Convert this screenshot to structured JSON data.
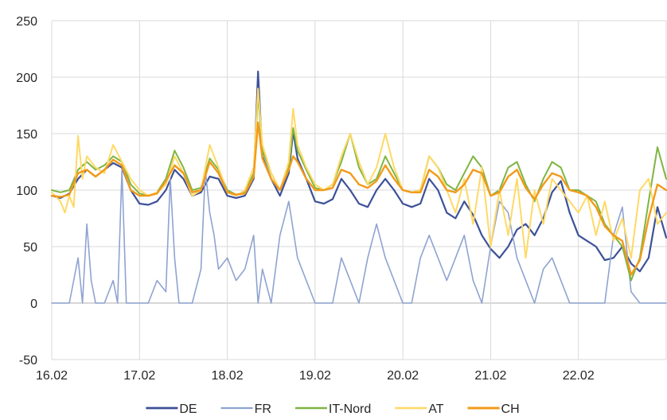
{
  "chart_data": {
    "type": "line",
    "title": "",
    "xlabel": "",
    "ylabel": "",
    "ylim": [
      -50,
      250
    ],
    "yticks": [
      -50,
      0,
      50,
      100,
      150,
      200,
      250
    ],
    "xlim": [
      0,
      7
    ],
    "xticks": [
      {
        "pos": 0,
        "label": "16.02"
      },
      {
        "pos": 1,
        "label": "17.02"
      },
      {
        "pos": 2,
        "label": "18.02"
      },
      {
        "pos": 3,
        "label": "19.02"
      },
      {
        "pos": 4,
        "label": "20.02"
      },
      {
        "pos": 5,
        "label": "21.02"
      },
      {
        "pos": 6,
        "label": "22.02"
      }
    ],
    "grid": true,
    "legend": "bottom",
    "series": [
      {
        "name": "DE",
        "color": "#3d5199",
        "width": 2.2,
        "x": [
          0,
          0.1,
          0.2,
          0.3,
          0.4,
          0.5,
          0.6,
          0.7,
          0.8,
          0.9,
          1.0,
          1.1,
          1.2,
          1.3,
          1.4,
          1.5,
          1.6,
          1.7,
          1.8,
          1.9,
          2.0,
          2.1,
          2.2,
          2.3,
          2.35,
          2.4,
          2.5,
          2.6,
          2.7,
          2.75,
          2.8,
          2.9,
          3.0,
          3.1,
          3.2,
          3.3,
          3.4,
          3.5,
          3.6,
          3.7,
          3.8,
          3.9,
          4.0,
          4.1,
          4.2,
          4.3,
          4.4,
          4.5,
          4.6,
          4.7,
          4.8,
          4.9,
          5.0,
          5.1,
          5.2,
          5.3,
          5.4,
          5.5,
          5.6,
          5.7,
          5.8,
          5.9,
          6.0,
          6.1,
          6.2,
          6.3,
          6.4,
          6.5,
          6.6,
          6.7,
          6.8,
          6.9,
          7.0
        ],
        "y": [
          95,
          93,
          97,
          110,
          118,
          112,
          118,
          124,
          120,
          100,
          88,
          87,
          90,
          100,
          118,
          110,
          95,
          98,
          112,
          110,
          95,
          93,
          95,
          110,
          205,
          130,
          110,
          95,
          115,
          152,
          128,
          110,
          90,
          88,
          92,
          110,
          100,
          88,
          85,
          100,
          110,
          100,
          88,
          85,
          88,
          110,
          100,
          80,
          75,
          90,
          78,
          60,
          48,
          40,
          50,
          65,
          70,
          60,
          75,
          98,
          108,
          80,
          60,
          55,
          50,
          38,
          40,
          50,
          35,
          28,
          40,
          85,
          58
        ]
      },
      {
        "name": "FR",
        "color": "#8fa3d1",
        "width": 1.6,
        "x": [
          0,
          0.2,
          0.25,
          0.3,
          0.35,
          0.4,
          0.45,
          0.5,
          0.6,
          0.7,
          0.75,
          0.8,
          0.85,
          0.9,
          1.0,
          1.1,
          1.2,
          1.3,
          1.35,
          1.4,
          1.45,
          1.5,
          1.6,
          1.7,
          1.75,
          1.8,
          1.85,
          1.9,
          2.0,
          2.1,
          2.2,
          2.3,
          2.35,
          2.4,
          2.5,
          2.6,
          2.7,
          2.8,
          2.9,
          3.0,
          3.1,
          3.2,
          3.3,
          3.4,
          3.5,
          3.6,
          3.7,
          3.8,
          3.9,
          4.0,
          4.1,
          4.2,
          4.3,
          4.4,
          4.5,
          4.6,
          4.7,
          4.8,
          4.9,
          5.0,
          5.1,
          5.2,
          5.3,
          5.4,
          5.5,
          5.6,
          5.7,
          5.8,
          5.9,
          6.0,
          6.1,
          6.2,
          6.3,
          6.4,
          6.5,
          6.6,
          6.7,
          6.8,
          6.9,
          7.0
        ],
        "y": [
          0,
          0,
          20,
          40,
          0,
          70,
          20,
          0,
          0,
          20,
          0,
          118,
          0,
          0,
          0,
          0,
          20,
          10,
          110,
          40,
          0,
          0,
          0,
          30,
          118,
          80,
          60,
          30,
          40,
          20,
          30,
          60,
          0,
          30,
          0,
          60,
          90,
          40,
          20,
          0,
          0,
          0,
          40,
          20,
          0,
          40,
          70,
          40,
          20,
          0,
          0,
          40,
          60,
          40,
          20,
          40,
          60,
          20,
          0,
          50,
          90,
          80,
          40,
          20,
          0,
          30,
          40,
          20,
          0,
          0,
          0,
          0,
          0,
          60,
          85,
          10,
          0,
          0,
          0,
          0
        ]
      },
      {
        "name": "IT-Nord",
        "color": "#7fb542",
        "width": 2.0,
        "x": [
          0,
          0.1,
          0.2,
          0.3,
          0.4,
          0.5,
          0.6,
          0.7,
          0.8,
          0.9,
          1.0,
          1.1,
          1.2,
          1.3,
          1.4,
          1.5,
          1.6,
          1.7,
          1.8,
          1.9,
          2.0,
          2.1,
          2.2,
          2.3,
          2.35,
          2.4,
          2.5,
          2.6,
          2.7,
          2.75,
          2.8,
          2.9,
          3.0,
          3.1,
          3.2,
          3.3,
          3.4,
          3.5,
          3.6,
          3.7,
          3.8,
          3.9,
          4.0,
          4.1,
          4.2,
          4.3,
          4.4,
          4.5,
          4.6,
          4.7,
          4.8,
          4.9,
          5.0,
          5.1,
          5.2,
          5.3,
          5.4,
          5.5,
          5.6,
          5.7,
          5.8,
          5.9,
          6.0,
          6.1,
          6.2,
          6.3,
          6.4,
          6.5,
          6.6,
          6.7,
          6.8,
          6.9,
          7.0
        ],
        "y": [
          100,
          98,
          100,
          118,
          125,
          118,
          122,
          130,
          125,
          105,
          97,
          95,
          98,
          110,
          135,
          120,
          100,
          102,
          128,
          118,
          100,
          96,
          98,
          115,
          185,
          135,
          115,
          100,
          120,
          155,
          135,
          118,
          102,
          100,
          105,
          125,
          150,
          120,
          105,
          110,
          130,
          115,
          100,
          98,
          100,
          130,
          120,
          105,
          100,
          115,
          130,
          120,
          95,
          100,
          120,
          125,
          105,
          90,
          110,
          125,
          120,
          100,
          100,
          95,
          90,
          70,
          60,
          50,
          20,
          40,
          90,
          138,
          110
        ]
      },
      {
        "name": "AT",
        "color": "#ffd966",
        "width": 2.0,
        "x": [
          0,
          0.1,
          0.15,
          0.2,
          0.25,
          0.3,
          0.35,
          0.4,
          0.5,
          0.6,
          0.7,
          0.8,
          0.9,
          1.0,
          1.1,
          1.2,
          1.3,
          1.4,
          1.5,
          1.6,
          1.7,
          1.8,
          1.9,
          2.0,
          2.1,
          2.2,
          2.3,
          2.35,
          2.4,
          2.5,
          2.6,
          2.7,
          2.75,
          2.8,
          2.9,
          3.0,
          3.1,
          3.2,
          3.3,
          3.4,
          3.5,
          3.6,
          3.7,
          3.8,
          3.9,
          4.0,
          4.1,
          4.2,
          4.3,
          4.4,
          4.5,
          4.6,
          4.7,
          4.8,
          4.9,
          5.0,
          5.1,
          5.2,
          5.3,
          5.4,
          5.5,
          5.6,
          5.7,
          5.8,
          5.9,
          6.0,
          6.1,
          6.2,
          6.3,
          6.4,
          6.5,
          6.6,
          6.7,
          6.8,
          6.9,
          7.0
        ],
        "y": [
          98,
          90,
          80,
          95,
          85,
          148,
          110,
          130,
          120,
          115,
          140,
          125,
          110,
          100,
          95,
          98,
          105,
          130,
          115,
          95,
          100,
          140,
          120,
          98,
          95,
          100,
          120,
          190,
          140,
          115,
          100,
          125,
          172,
          140,
          120,
          105,
          100,
          105,
          130,
          150,
          125,
          105,
          120,
          150,
          120,
          100,
          98,
          100,
          130,
          120,
          100,
          80,
          110,
          70,
          120,
          50,
          100,
          60,
          110,
          40,
          100,
          70,
          110,
          100,
          90,
          80,
          95,
          60,
          90,
          55,
          75,
          40,
          100,
          110,
          70,
          80
        ]
      },
      {
        "name": "CH",
        "color": "#f29a1a",
        "width": 2.4,
        "x": [
          0,
          0.1,
          0.2,
          0.3,
          0.4,
          0.5,
          0.6,
          0.7,
          0.8,
          0.9,
          1.0,
          1.1,
          1.2,
          1.3,
          1.4,
          1.5,
          1.6,
          1.7,
          1.8,
          1.9,
          2.0,
          2.1,
          2.2,
          2.3,
          2.35,
          2.4,
          2.5,
          2.6,
          2.7,
          2.75,
          2.8,
          2.9,
          3.0,
          3.1,
          3.2,
          3.3,
          3.4,
          3.5,
          3.6,
          3.7,
          3.8,
          3.9,
          4.0,
          4.1,
          4.2,
          4.3,
          4.4,
          4.5,
          4.6,
          4.7,
          4.8,
          4.9,
          5.0,
          5.1,
          5.2,
          5.3,
          5.4,
          5.5,
          5.6,
          5.7,
          5.8,
          5.9,
          6.0,
          6.1,
          6.2,
          6.3,
          6.4,
          6.5,
          6.6,
          6.7,
          6.8,
          6.9,
          7.0
        ],
        "y": [
          95,
          94,
          96,
          115,
          118,
          112,
          118,
          127,
          122,
          100,
          95,
          95,
          97,
          108,
          122,
          115,
          98,
          100,
          125,
          115,
          98,
          96,
          97,
          112,
          160,
          128,
          110,
          100,
          118,
          130,
          125,
          110,
          100,
          100,
          102,
          118,
          115,
          105,
          102,
          108,
          122,
          110,
          100,
          98,
          98,
          118,
          112,
          100,
          98,
          105,
          118,
          115,
          95,
          98,
          112,
          118,
          102,
          92,
          105,
          115,
          112,
          100,
          98,
          95,
          85,
          68,
          60,
          55,
          25,
          38,
          75,
          105,
          100
        ]
      }
    ]
  }
}
